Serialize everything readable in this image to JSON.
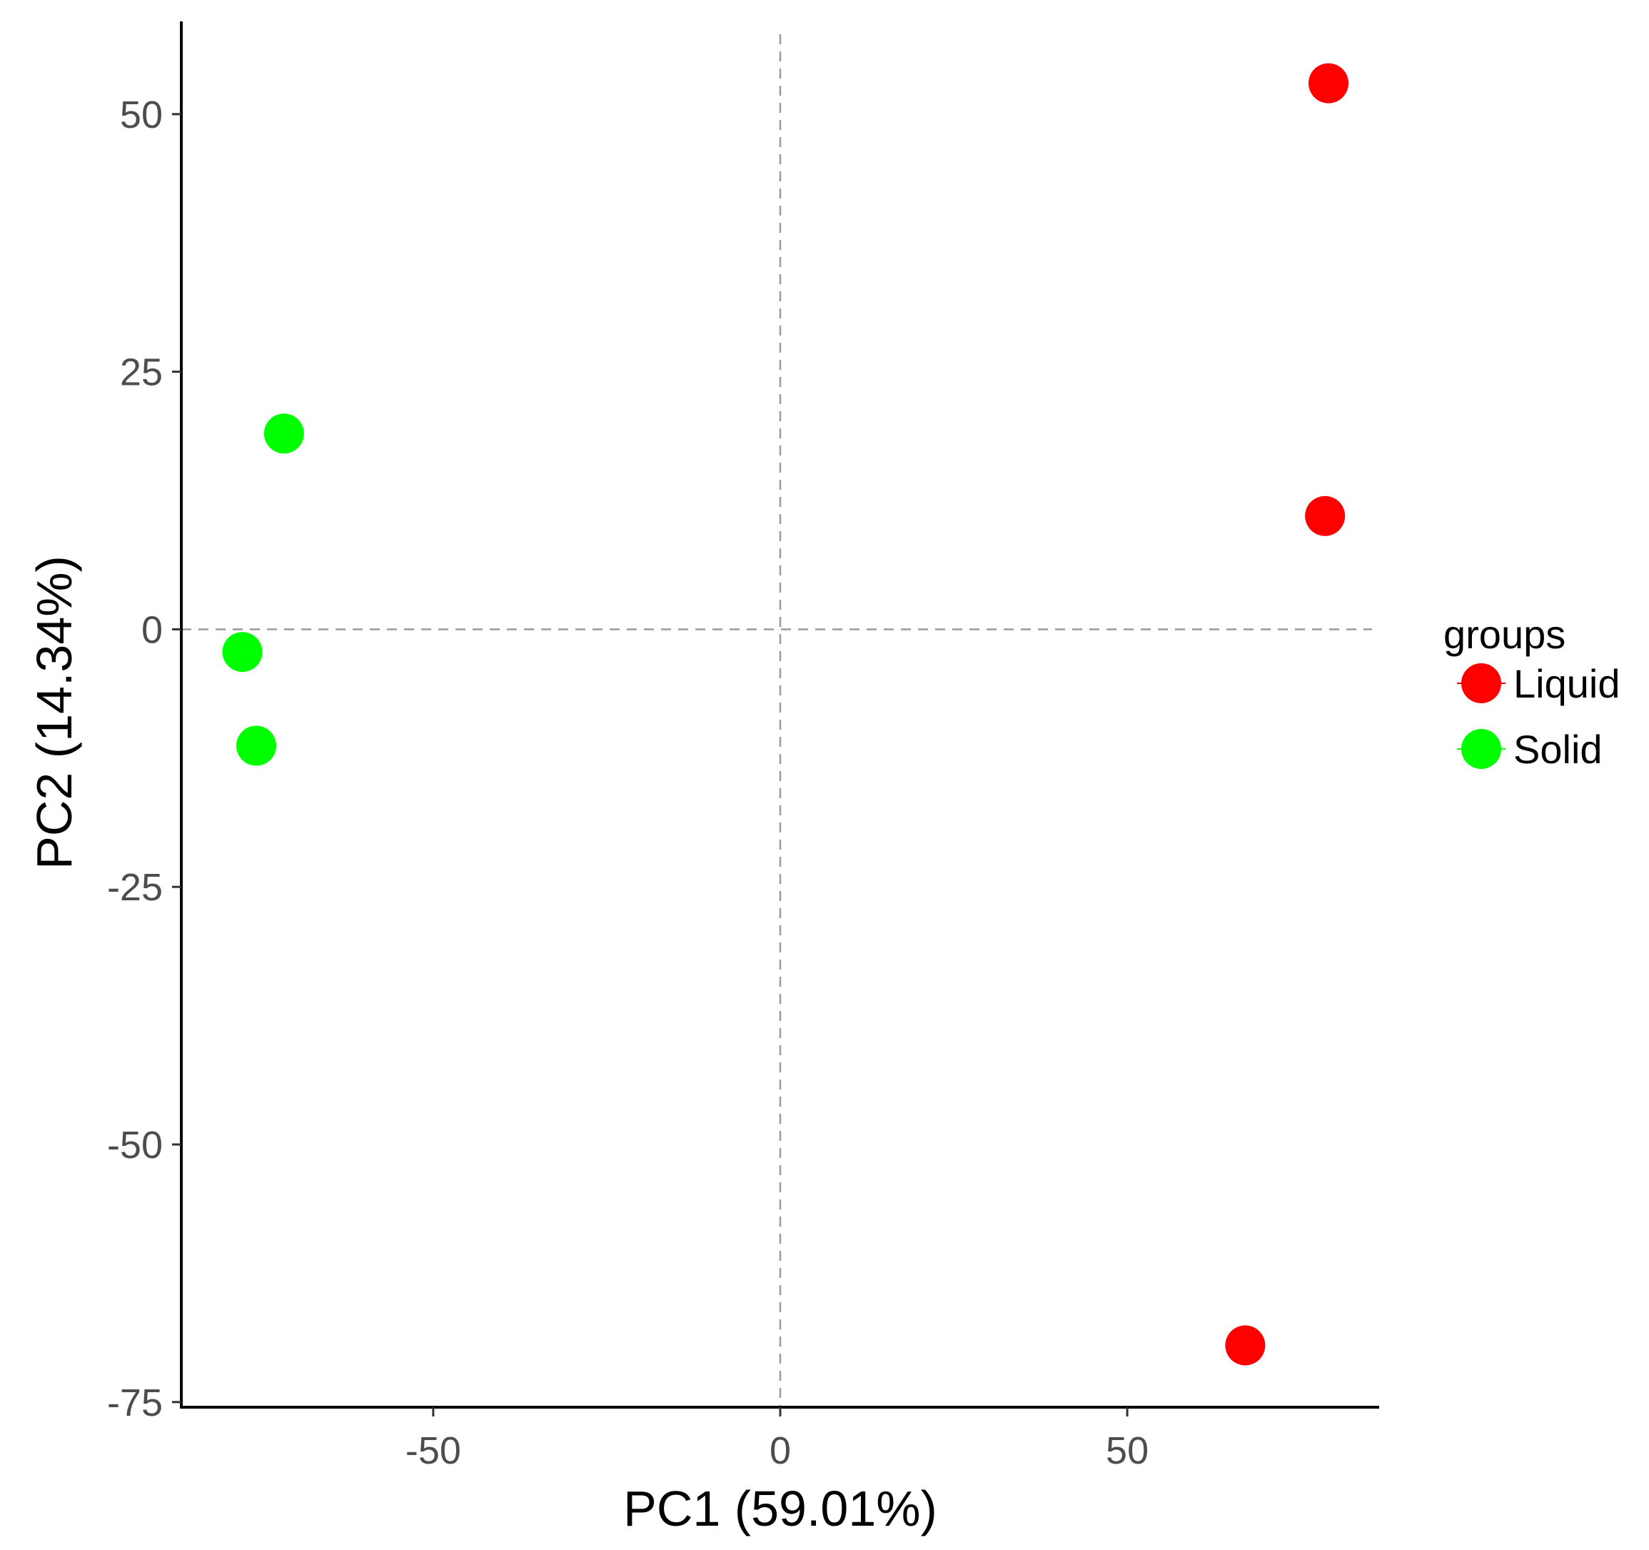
{
  "chart_data": {
    "type": "scatter",
    "title": "",
    "xlabel": "PC1 (59.01%)",
    "ylabel": "PC2 (14.34%)",
    "xlim": [
      -86.3,
      86.3
    ],
    "ylim": [
      -75.5,
      59
    ],
    "x_ticks": [
      {
        "value": -50,
        "label": "-50"
      },
      {
        "value": 0,
        "label": "0"
      },
      {
        "value": 50,
        "label": "50"
      }
    ],
    "y_ticks": [
      {
        "value": 50,
        "label": "50"
      },
      {
        "value": 25,
        "label": "25"
      },
      {
        "value": 0,
        "label": "0"
      },
      {
        "value": -25,
        "label": "-25"
      },
      {
        "value": -50,
        "label": "-50"
      },
      {
        "value": -75,
        "label": "-75"
      }
    ],
    "reference_lines": {
      "x": 0,
      "y": 0,
      "style": "dashed"
    },
    "grid": false,
    "legend": {
      "title": "groups",
      "position": "right",
      "entries": [
        {
          "label": "Liquid",
          "color": "#ff0000"
        },
        {
          "label": "Solid",
          "color": "#00ff00"
        }
      ]
    },
    "series": [
      {
        "name": "Liquid",
        "color": "#ff0000",
        "points": [
          {
            "x": 79,
            "y": 53
          },
          {
            "x": 78.5,
            "y": 11
          },
          {
            "x": 67,
            "y": -69.5
          }
        ]
      },
      {
        "name": "Solid",
        "color": "#00ff00",
        "points": [
          {
            "x": -71.5,
            "y": 19
          },
          {
            "x": -77.5,
            "y": -2.2
          },
          {
            "x": -75.5,
            "y": -11.3
          }
        ]
      }
    ]
  }
}
